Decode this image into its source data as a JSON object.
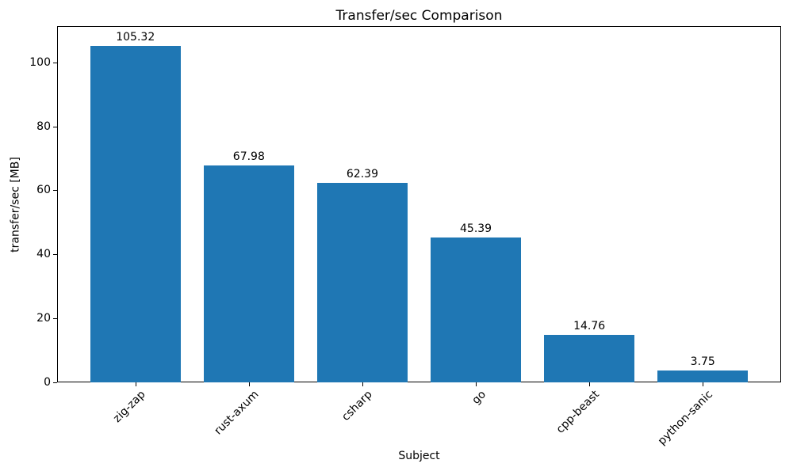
{
  "chart_data": {
    "type": "bar",
    "title": "Transfer/sec Comparison",
    "xlabel": "Subject",
    "ylabel": "transfer/sec [MB]",
    "categories": [
      "zig-zap",
      "rust-axum",
      "csharp",
      "go",
      "cpp-beast",
      "python-sanic"
    ],
    "values": [
      105.32,
      67.98,
      62.39,
      45.39,
      14.76,
      3.75
    ],
    "value_labels": [
      "105.32",
      "67.98",
      "62.39",
      "45.39",
      "14.76",
      "3.75"
    ],
    "yticks": [
      0,
      20,
      40,
      60,
      80,
      100
    ],
    "ytick_labels": [
      "0",
      "20",
      "40",
      "60",
      "80",
      "100"
    ],
    "ylim": [
      0,
      111.5
    ],
    "xlim": [
      -0.69,
      5.69
    ],
    "bar_color": "#1f77b4",
    "bar_width_units": 0.8,
    "xtick_rotation_deg": 45,
    "grid": false,
    "legend": "none"
  }
}
